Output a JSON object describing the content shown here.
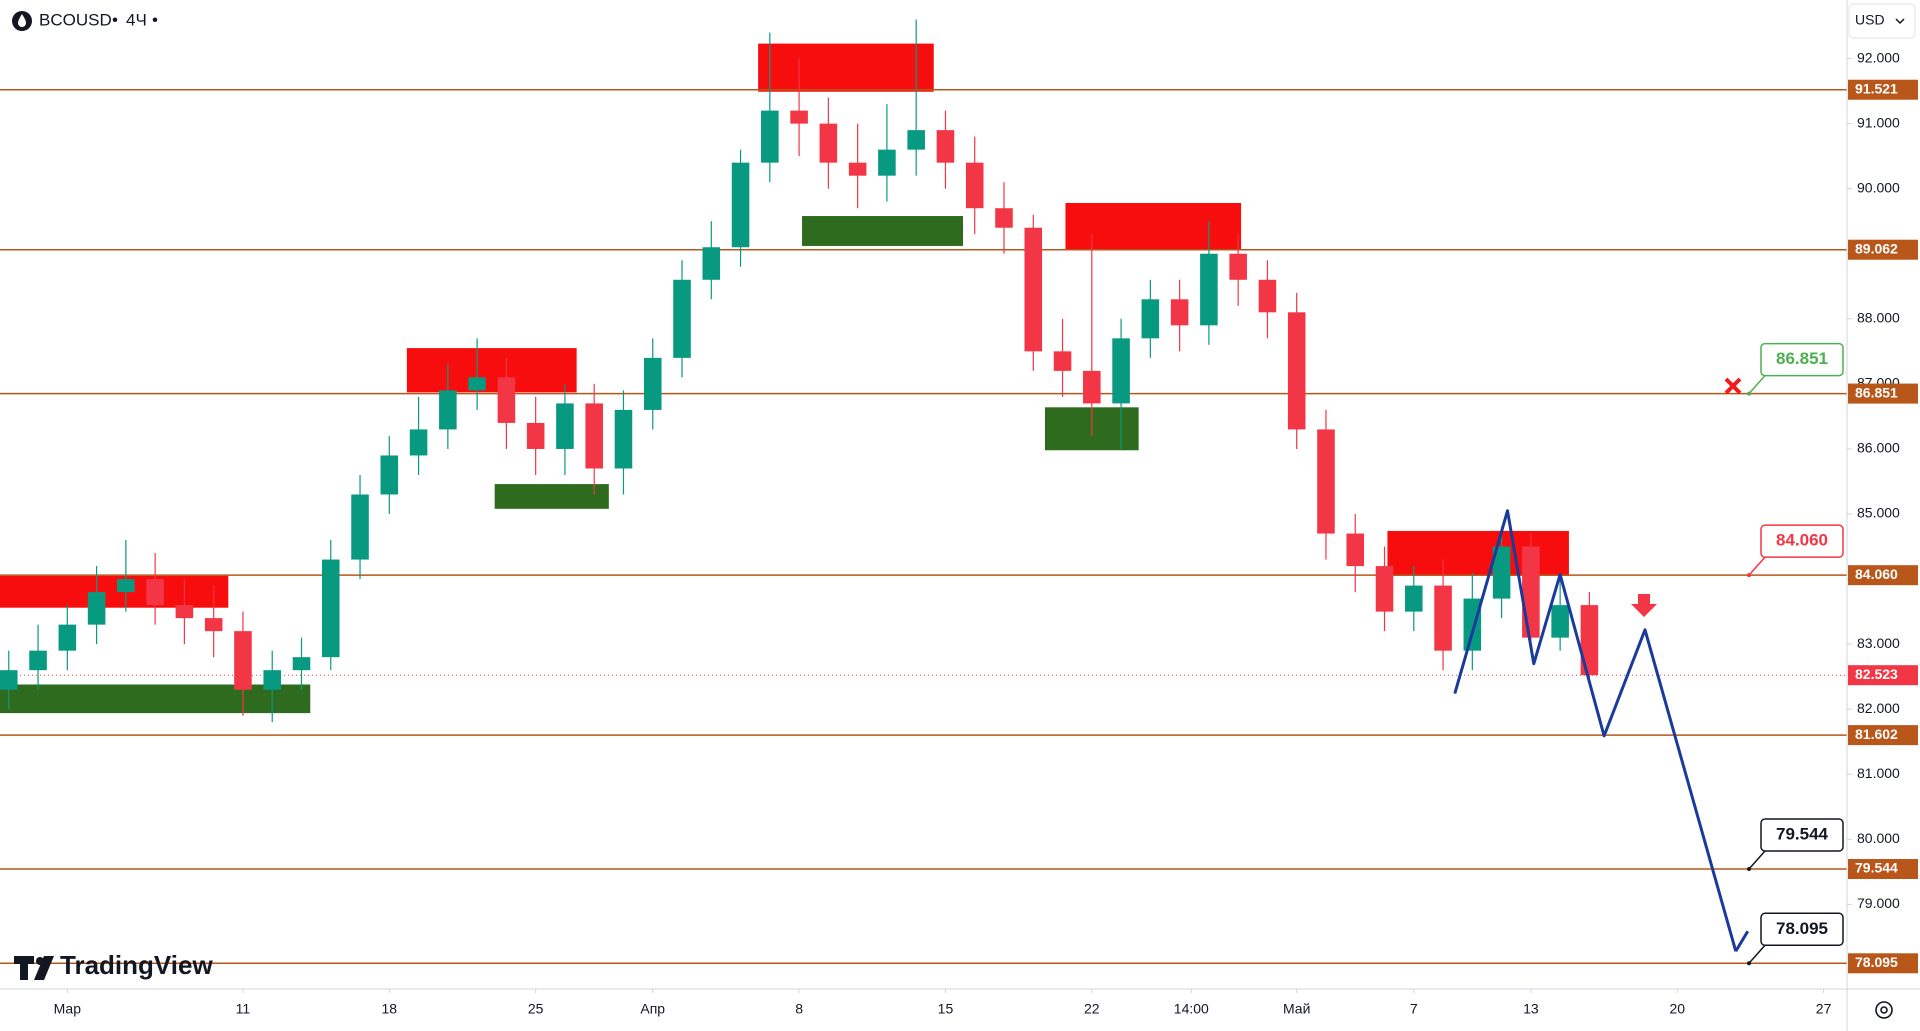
{
  "chart_data": {
    "type": "candlestick",
    "symbol": "BCOUSD",
    "interval": "4Ч",
    "currency": "USD",
    "brand": "TradingView",
    "up_color": "#089981",
    "down_color": "#f23645",
    "x": [
      -2,
      -1,
      0,
      1,
      2,
      3,
      4,
      5,
      6,
      7,
      8,
      9,
      10,
      11,
      12,
      13,
      14,
      15,
      16,
      17,
      18,
      19,
      20,
      21,
      22,
      23,
      24,
      25,
      26,
      27,
      28,
      29,
      30,
      31,
      32,
      33,
      34,
      35,
      36,
      37,
      38,
      39,
      40,
      41,
      42,
      43,
      44,
      45,
      46,
      47,
      48,
      49,
      50,
      51,
      52
    ],
    "open": [
      82.3,
      82.6,
      82.9,
      83.3,
      83.8,
      84.0,
      83.6,
      83.4,
      83.2,
      82.3,
      82.6,
      82.8,
      84.3,
      85.3,
      85.9,
      86.3,
      86.9,
      87.1,
      86.4,
      86.0,
      86.7,
      85.7,
      86.6,
      87.4,
      88.6,
      89.1,
      90.4,
      91.2,
      91.0,
      90.4,
      90.2,
      90.6,
      90.9,
      90.4,
      89.7,
      89.4,
      87.5,
      87.2,
      86.7,
      87.7,
      88.3,
      87.9,
      89.0,
      88.6,
      88.1,
      86.3,
      84.7,
      84.2,
      83.5,
      83.9,
      82.9,
      83.7,
      84.5,
      83.1,
      83.6
    ],
    "high": [
      82.9,
      83.3,
      83.6,
      84.2,
      84.6,
      84.4,
      84.0,
      83.9,
      83.5,
      82.9,
      83.1,
      84.6,
      85.6,
      86.2,
      86.8,
      87.3,
      87.7,
      87.4,
      86.8,
      87.0,
      87.0,
      86.9,
      87.7,
      88.9,
      89.5,
      90.6,
      92.4,
      92.0,
      91.4,
      91.0,
      91.3,
      92.6,
      91.2,
      90.8,
      90.1,
      89.6,
      88.0,
      89.3,
      88.0,
      88.6,
      88.6,
      89.5,
      89.3,
      88.9,
      88.4,
      86.6,
      85.0,
      84.5,
      84.2,
      84.3,
      84.1,
      84.8,
      84.7,
      84.0,
      83.8
    ],
    "low": [
      82.0,
      82.3,
      82.6,
      83.0,
      83.5,
      83.3,
      83.0,
      82.8,
      81.9,
      81.8,
      82.3,
      82.6,
      84.0,
      85.0,
      85.6,
      86.0,
      86.6,
      86.0,
      85.6,
      85.6,
      85.3,
      85.3,
      86.3,
      87.1,
      88.3,
      88.8,
      90.1,
      90.5,
      90.0,
      89.7,
      89.8,
      90.2,
      90.0,
      89.3,
      89.0,
      87.2,
      86.8,
      86.2,
      86.0,
      87.4,
      87.5,
      87.6,
      88.2,
      87.7,
      86.0,
      84.3,
      83.8,
      83.2,
      83.2,
      82.6,
      82.6,
      83.4,
      82.9,
      82.9,
      82.4
    ],
    "close": [
      82.6,
      82.9,
      83.3,
      83.8,
      84.0,
      83.6,
      83.4,
      83.2,
      82.3,
      82.6,
      82.8,
      84.3,
      85.3,
      85.9,
      86.3,
      86.9,
      87.1,
      86.4,
      86.0,
      86.7,
      85.7,
      86.6,
      87.4,
      88.6,
      89.1,
      90.4,
      91.2,
      91.0,
      90.4,
      90.2,
      90.6,
      90.9,
      90.4,
      89.7,
      89.4,
      87.5,
      87.2,
      86.7,
      87.7,
      88.3,
      87.9,
      89.0,
      88.6,
      88.1,
      86.3,
      84.7,
      84.2,
      83.5,
      83.9,
      82.9,
      83.7,
      84.5,
      83.1,
      83.6,
      82.523
    ],
    "xlim": [
      -2.3,
      60.8
    ],
    "xticks": [
      {
        "value": 0,
        "label": "Мар"
      },
      {
        "value": 6,
        "label": "11"
      },
      {
        "value": 11,
        "label": "18"
      },
      {
        "value": 16,
        "label": "25"
      },
      {
        "value": 20,
        "label": "Апр"
      },
      {
        "value": 25,
        "label": "8"
      },
      {
        "value": 30,
        "label": "15"
      },
      {
        "value": 35,
        "label": "22"
      },
      {
        "value": 38.4,
        "label": "14:00"
      },
      {
        "value": 42,
        "label": "Май"
      },
      {
        "value": 46,
        "label": "7"
      },
      {
        "value": 50,
        "label": "13"
      },
      {
        "value": 55,
        "label": "20"
      },
      {
        "value": 60,
        "label": "27"
      }
    ],
    "ylim": [
      77.7,
      92.9
    ],
    "yticks": [
      {
        "value": 78,
        "label": "78.000"
      },
      {
        "value": 79,
        "label": "79.000"
      },
      {
        "value": 80,
        "label": "80.000"
      },
      {
        "value": 81,
        "label": "81.000"
      },
      {
        "value": 82,
        "label": "82.000"
      },
      {
        "value": 83,
        "label": "83.000"
      },
      {
        "value": 84,
        "label": "84.000"
      },
      {
        "value": 85,
        "label": "85.000"
      },
      {
        "value": 86,
        "label": "86.000"
      },
      {
        "value": 87,
        "label": "87.000"
      },
      {
        "value": 88,
        "label": "88.000"
      },
      {
        "value": 89,
        "label": "89.000"
      },
      {
        "value": 90,
        "label": "90.000"
      },
      {
        "value": 91,
        "label": "91.000"
      },
      {
        "value": 92,
        "label": "92.000"
      }
    ],
    "level_color": "#b9561a",
    "levels": [
      {
        "value": 91.521,
        "label": "91.521"
      },
      {
        "value": 89.062,
        "label": "89.062"
      },
      {
        "value": 86.851,
        "label": "86.851"
      },
      {
        "value": 84.06,
        "label": "84.060"
      },
      {
        "value": 81.602,
        "label": "81.602"
      },
      {
        "value": 79.544,
        "label": "79.544"
      },
      {
        "value": 78.095,
        "label": "78.095"
      }
    ],
    "current_price": {
      "value": 82.523,
      "label": "82.523",
      "color": "#f23645"
    },
    "callouts": [
      {
        "value": 86.851,
        "label": "86.851",
        "color": "#4caf50"
      },
      {
        "value": 84.06,
        "label": "84.060",
        "color": "#f23645"
      },
      {
        "value": 79.544,
        "label": "79.544",
        "color": "#131722"
      },
      {
        "value": 78.095,
        "label": "78.095",
        "color": "#131722"
      }
    ],
    "zones": [
      {
        "x0": -2.3,
        "x1": 5.5,
        "y0": 83.56,
        "y1": 84.05,
        "color": "#f70d0d"
      },
      {
        "x0": -2.3,
        "x1": 8.3,
        "y0": 81.94,
        "y1": 82.38,
        "color": "#2e6b1e"
      },
      {
        "x0": 11.6,
        "x1": 17.4,
        "y0": 86.87,
        "y1": 87.55,
        "color": "#f70d0d"
      },
      {
        "x0": 14.6,
        "x1": 18.5,
        "y0": 85.08,
        "y1": 85.46,
        "color": "#2e6b1e"
      },
      {
        "x0": 23.6,
        "x1": 29.6,
        "y0": 91.49,
        "y1": 92.23,
        "color": "#f70d0d"
      },
      {
        "x0": 25.1,
        "x1": 30.6,
        "y0": 89.12,
        "y1": 89.58,
        "color": "#2e6b1e"
      },
      {
        "x0": 34.1,
        "x1": 40.1,
        "y0": 89.05,
        "y1": 89.78,
        "color": "#f70d0d"
      },
      {
        "x0": 33.4,
        "x1": 36.6,
        "y0": 85.98,
        "y1": 86.64,
        "color": "#2e6b1e"
      },
      {
        "x0": 45.1,
        "x1": 51.3,
        "y0": 84.05,
        "y1": 84.74,
        "color": "#f70d0d"
      }
    ],
    "projection": {
      "x": [
        47.4,
        49.2,
        50.1,
        51.0,
        52.5,
        53.9,
        57.0
      ],
      "values": [
        82.24,
        85.05,
        82.7,
        84.07,
        81.59,
        83.22,
        78.28
      ],
      "color": "#1a3a9c"
    }
  }
}
